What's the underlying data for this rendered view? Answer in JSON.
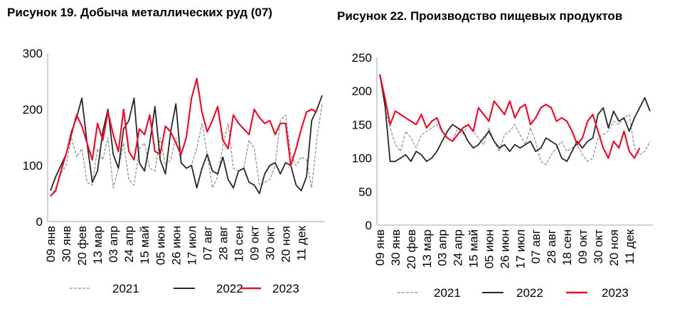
{
  "chart_data": [
    {
      "type": "line",
      "title": "Рисунок 19. Добыча металлических руд (07)",
      "ylim": [
        0,
        300
      ],
      "yticks": [
        0,
        100,
        200,
        300
      ],
      "x_tick_labels": [
        "09 янв",
        "30 янв",
        "20 фев",
        "13 мар",
        "03 апр",
        "24 апр",
        "15 май",
        "05 июн",
        "26 июн",
        "17 июл",
        "07 авг",
        "28 авг",
        "18 сен",
        "09 окт",
        "30 окт",
        "20 ноя",
        "11 дек"
      ],
      "x_weeks": 52,
      "legend": [
        "2021",
        "2022",
        "2023"
      ],
      "grid": false,
      "series": [
        {
          "name": "2021",
          "style": "dashed",
          "color": "#8c8c8c",
          "values": [
            45,
            60,
            85,
            100,
            150,
            115,
            130,
            70,
            65,
            130,
            110,
            150,
            60,
            95,
            140,
            75,
            65,
            130,
            140,
            95,
            90,
            150,
            100,
            110,
            150,
            105,
            95,
            100,
            130,
            175,
            120,
            60,
            80,
            135,
            175,
            95,
            90,
            95,
            145,
            130,
            65,
            70,
            75,
            100,
            180,
            190,
            120,
            100,
            115,
            110,
            60,
            150,
            210
          ]
        },
        {
          "name": "2022",
          "style": "solid",
          "color": "#262626",
          "values": [
            55,
            80,
            100,
            120,
            160,
            185,
            220,
            140,
            70,
            90,
            160,
            200,
            120,
            95,
            165,
            180,
            220,
            105,
            90,
            140,
            205,
            110,
            85,
            160,
            210,
            105,
            95,
            100,
            60,
            95,
            120,
            90,
            85,
            115,
            75,
            60,
            90,
            95,
            70,
            65,
            50,
            85,
            100,
            105,
            85,
            105,
            100,
            65,
            55,
            80,
            180,
            200,
            225
          ]
        },
        {
          "name": "2023",
          "style": "solid",
          "color": "#e8112d",
          "values": [
            45,
            55,
            90,
            120,
            155,
            190,
            170,
            140,
            110,
            175,
            145,
            195,
            155,
            125,
            200,
            125,
            110,
            165,
            155,
            190,
            125,
            120,
            170,
            160,
            140,
            120,
            150,
            220,
            255,
            195,
            160,
            180,
            205,
            145,
            130,
            190,
            175,
            165,
            155,
            200,
            185,
            175,
            180,
            155,
            175,
            175,
            100,
            130,
            165,
            195,
            200,
            195,
            null
          ]
        }
      ]
    },
    {
      "type": "line",
      "title": "Рисунок 22. Производство пищевых продуктов",
      "ylim": [
        0,
        250
      ],
      "yticks": [
        0,
        50,
        100,
        150,
        200,
        250
      ],
      "x_tick_labels": [
        "09 янв",
        "30 янв",
        "20 фев",
        "13 мар",
        "03 апр",
        "24 апр",
        "15 май",
        "05 июн",
        "26 июн",
        "17 июл",
        "07 авг",
        "28 авг",
        "18 сен",
        "09 окт",
        "30 окт",
        "20 ноя",
        "11 дек"
      ],
      "x_weeks": 52,
      "legend": [
        "2021",
        "2022",
        "2023"
      ],
      "grid": false,
      "series": [
        {
          "name": "2021",
          "style": "dashed",
          "color": "#8c8c8c",
          "values": [
            225,
            175,
            145,
            120,
            110,
            140,
            130,
            115,
            135,
            140,
            145,
            150,
            140,
            130,
            125,
            145,
            135,
            150,
            140,
            130,
            120,
            145,
            125,
            110,
            135,
            140,
            150,
            135,
            120,
            145,
            125,
            95,
            90,
            105,
            115,
            125,
            110,
            115,
            120,
            105,
            95,
            100,
            130,
            135,
            140,
            155,
            150,
            160,
            165,
            115,
            105,
            110,
            125
          ]
        },
        {
          "name": "2022",
          "style": "solid",
          "color": "#262626",
          "values": [
            225,
            180,
            95,
            95,
            100,
            105,
            95,
            110,
            105,
            95,
            100,
            110,
            125,
            140,
            150,
            145,
            140,
            125,
            115,
            120,
            130,
            140,
            125,
            115,
            120,
            110,
            120,
            115,
            120,
            125,
            110,
            115,
            130,
            125,
            120,
            100,
            95,
            110,
            125,
            115,
            125,
            130,
            165,
            175,
            145,
            170,
            155,
            160,
            140,
            160,
            175,
            190,
            170
          ]
        },
        {
          "name": "2023",
          "style": "solid",
          "color": "#e8112d",
          "values": [
            225,
            190,
            150,
            170,
            165,
            160,
            155,
            150,
            165,
            145,
            155,
            160,
            140,
            130,
            125,
            135,
            145,
            150,
            140,
            175,
            165,
            155,
            185,
            175,
            165,
            185,
            160,
            175,
            180,
            150,
            160,
            175,
            180,
            175,
            155,
            160,
            155,
            140,
            120,
            130,
            155,
            165,
            140,
            115,
            100,
            125,
            115,
            140,
            110,
            100,
            115,
            null,
            null
          ]
        }
      ]
    }
  ]
}
